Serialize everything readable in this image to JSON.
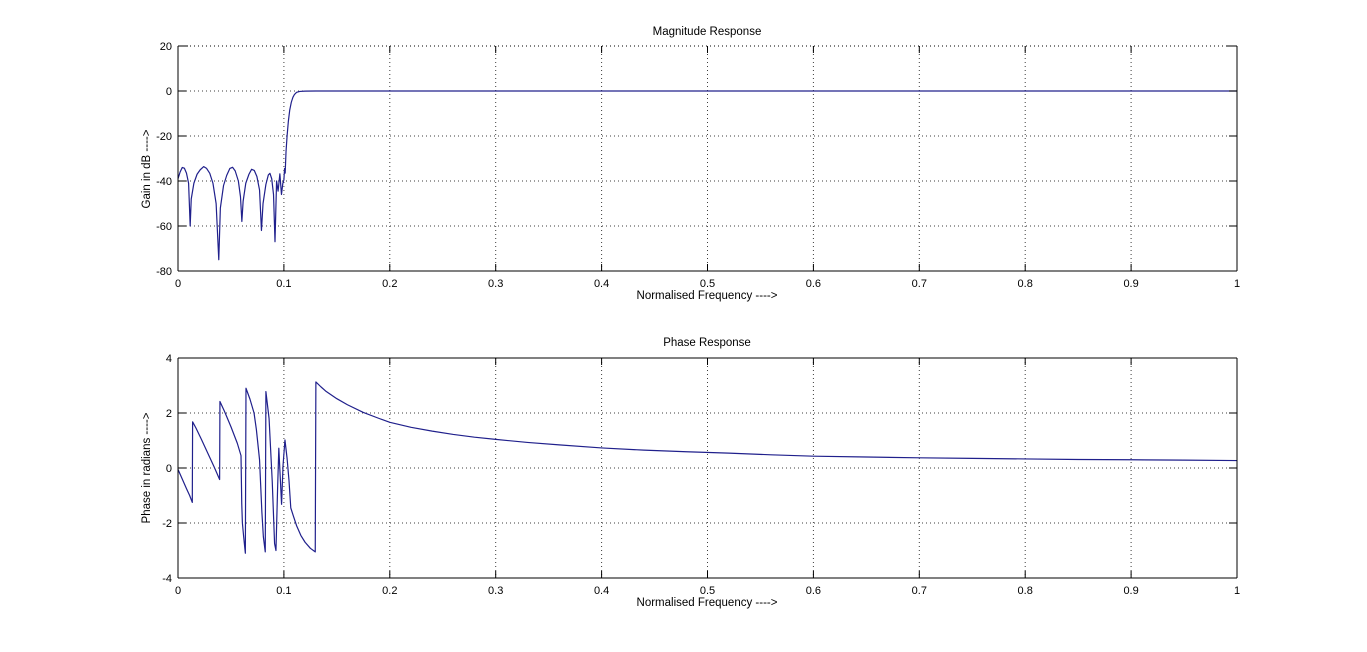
{
  "figure": {
    "background": "#ffffff",
    "line_color": "#20208c",
    "grid_color": "#3c3c3c",
    "axis_color": "#000000",
    "text_color": "#000000"
  },
  "chart_data": [
    {
      "type": "line",
      "title": "Magnitude Response",
      "xlabel": "Normalised Frequency ---->",
      "ylabel": "Gain in dB ---->",
      "xlim": [
        0,
        1
      ],
      "ylim": [
        -80,
        20
      ],
      "grid": true,
      "legend": "none",
      "xtick_values": [
        0,
        0.1,
        0.2,
        0.3,
        0.4,
        0.5,
        0.6,
        0.7,
        0.8,
        0.9,
        1
      ],
      "xtick_labels": [
        "0",
        "0.1",
        "0.2",
        "0.3",
        "0.4",
        "0.5",
        "0.6",
        "0.7",
        "0.8",
        "0.9",
        "1"
      ],
      "ytick_values": [
        20,
        0,
        -20,
        -40,
        -60,
        -80
      ],
      "ytick_labels": [
        "20",
        "0",
        "-20",
        "-40",
        "-60",
        "-80"
      ],
      "series": [
        {
          "name": "magnitude_dB",
          "points": [
            [
              0,
              -39
            ],
            [
              0.002,
              -36
            ],
            [
              0.004,
              -34
            ],
            [
              0.006,
              -34.3
            ],
            [
              0.008,
              -36.5
            ],
            [
              0.01,
              -41
            ],
            [
              0.0115,
              -60
            ],
            [
              0.0125,
              -48
            ],
            [
              0.015,
              -41
            ],
            [
              0.018,
              -37
            ],
            [
              0.021,
              -35
            ],
            [
              0.0243,
              -33.6
            ],
            [
              0.027,
              -34.4
            ],
            [
              0.03,
              -36.6
            ],
            [
              0.033,
              -41
            ],
            [
              0.036,
              -50
            ],
            [
              0.0385,
              -75
            ],
            [
              0.04,
              -52
            ],
            [
              0.043,
              -42
            ],
            [
              0.046,
              -37.5
            ],
            [
              0.049,
              -34.4
            ],
            [
              0.0515,
              -33.9
            ],
            [
              0.054,
              -35.5
            ],
            [
              0.057,
              -40
            ],
            [
              0.059,
              -47
            ],
            [
              0.0603,
              -58
            ],
            [
              0.0615,
              -49
            ],
            [
              0.064,
              -41
            ],
            [
              0.067,
              -37
            ],
            [
              0.0695,
              -34.8
            ],
            [
              0.072,
              -35.3
            ],
            [
              0.0745,
              -38
            ],
            [
              0.077,
              -44
            ],
            [
              0.0788,
              -62
            ],
            [
              0.0803,
              -50
            ],
            [
              0.083,
              -41.5
            ],
            [
              0.0853,
              -37.3
            ],
            [
              0.0868,
              -36.6
            ],
            [
              0.0885,
              -39
            ],
            [
              0.0902,
              -46
            ],
            [
              0.0916,
              -67
            ],
            [
              0.0931,
              -40
            ],
            [
              0.0945,
              -44.5
            ],
            [
              0.0962,
              -36.8
            ],
            [
              0.0977,
              -46
            ],
            [
              0.099,
              -41
            ],
            [
              0.1,
              -39.5
            ],
            [
              0.1006,
              -34.5
            ],
            [
              0.1012,
              -36.5
            ],
            [
              0.102,
              -27
            ],
            [
              0.103,
              -20
            ],
            [
              0.1042,
              -13.5
            ],
            [
              0.1055,
              -8.5
            ],
            [
              0.107,
              -5
            ],
            [
              0.1085,
              -2.8
            ],
            [
              0.11,
              -1.5
            ],
            [
              0.112,
              -0.6
            ],
            [
              0.115,
              -0.2
            ],
            [
              0.12,
              -0.05
            ],
            [
              0.13,
              0
            ],
            [
              0.2,
              0
            ],
            [
              0.4,
              0
            ],
            [
              0.6,
              0
            ],
            [
              0.8,
              0
            ],
            [
              1.0,
              0
            ]
          ]
        }
      ]
    },
    {
      "type": "line",
      "title": "Phase Response",
      "xlabel": "Normalised Frequency ---->",
      "ylabel": "Phase in radians ---->",
      "xlim": [
        0,
        1
      ],
      "ylim": [
        -4,
        4
      ],
      "grid": true,
      "legend": "none",
      "xtick_values": [
        0,
        0.1,
        0.2,
        0.3,
        0.4,
        0.5,
        0.6,
        0.7,
        0.8,
        0.9,
        1
      ],
      "xtick_labels": [
        "0",
        "0.1",
        "0.2",
        "0.3",
        "0.4",
        "0.5",
        "0.6",
        "0.7",
        "0.8",
        "0.9",
        "1"
      ],
      "ytick_values": [
        4,
        2,
        0,
        -2,
        -4
      ],
      "ytick_labels": [
        "4",
        "2",
        "0",
        "-2",
        "-4"
      ],
      "series": [
        {
          "name": "phase_radians",
          "points": [
            [
              0,
              -0.05
            ],
            [
              0.004,
              -0.4
            ],
            [
              0.008,
              -0.75
            ],
            [
              0.011,
              -1.0
            ],
            [
              0.0135,
              -1.25
            ],
            [
              0.0138,
              1.68
            ],
            [
              0.017,
              1.45
            ],
            [
              0.022,
              1.05
            ],
            [
              0.028,
              0.55
            ],
            [
              0.034,
              0.05
            ],
            [
              0.0393,
              -0.42
            ],
            [
              0.0396,
              2.42
            ],
            [
              0.044,
              2.05
            ],
            [
              0.05,
              1.5
            ],
            [
              0.056,
              0.9
            ],
            [
              0.0595,
              0.45
            ],
            [
              0.0602,
              -1.3
            ],
            [
              0.0608,
              -2.0
            ],
            [
              0.062,
              -2.5
            ],
            [
              0.0636,
              -3.1
            ],
            [
              0.0642,
              2.9
            ],
            [
              0.068,
              2.5
            ],
            [
              0.0718,
              2.0
            ],
            [
              0.074,
              1.4
            ],
            [
              0.077,
              0.3
            ],
            [
              0.0792,
              -1.6
            ],
            [
              0.0806,
              -2.5
            ],
            [
              0.0824,
              -3.05
            ],
            [
              0.083,
              2.78
            ],
            [
              0.086,
              1.8
            ],
            [
              0.089,
              -0.5
            ],
            [
              0.0912,
              -2.75
            ],
            [
              0.0925,
              -3.0
            ],
            [
              0.094,
              -0.8
            ],
            [
              0.0952,
              0.72
            ],
            [
              0.0965,
              -0.3
            ],
            [
              0.0978,
              -1.32
            ],
            [
              0.0992,
              0.1
            ],
            [
              0.101,
              1.02
            ],
            [
              0.103,
              0.35
            ],
            [
              0.1048,
              -0.45
            ],
            [
              0.1065,
              -1.45
            ],
            [
              0.109,
              -1.75
            ],
            [
              0.112,
              -2.1
            ],
            [
              0.116,
              -2.45
            ],
            [
              0.12,
              -2.7
            ],
            [
              0.125,
              -2.92
            ],
            [
              0.1296,
              -3.05
            ],
            [
              0.1302,
              3.13
            ],
            [
              0.135,
              2.95
            ],
            [
              0.14,
              2.78
            ],
            [
              0.15,
              2.52
            ],
            [
              0.16,
              2.3
            ],
            [
              0.175,
              2.02
            ],
            [
              0.19,
              1.8
            ],
            [
              0.2,
              1.66
            ],
            [
              0.22,
              1.48
            ],
            [
              0.24,
              1.34
            ],
            [
              0.26,
              1.22
            ],
            [
              0.28,
              1.12
            ],
            [
              0.3,
              1.04
            ],
            [
              0.33,
              0.93
            ],
            [
              0.36,
              0.84
            ],
            [
              0.4,
              0.73
            ],
            [
              0.44,
              0.65
            ],
            [
              0.48,
              0.59
            ],
            [
              0.52,
              0.54
            ],
            [
              0.56,
              0.48
            ],
            [
              0.6,
              0.43
            ],
            [
              0.65,
              0.4
            ],
            [
              0.7,
              0.37
            ],
            [
              0.75,
              0.35
            ],
            [
              0.8,
              0.33
            ],
            [
              0.85,
              0.31
            ],
            [
              0.9,
              0.3
            ],
            [
              0.95,
              0.285
            ],
            [
              1.0,
              0.27
            ]
          ]
        }
      ]
    }
  ]
}
